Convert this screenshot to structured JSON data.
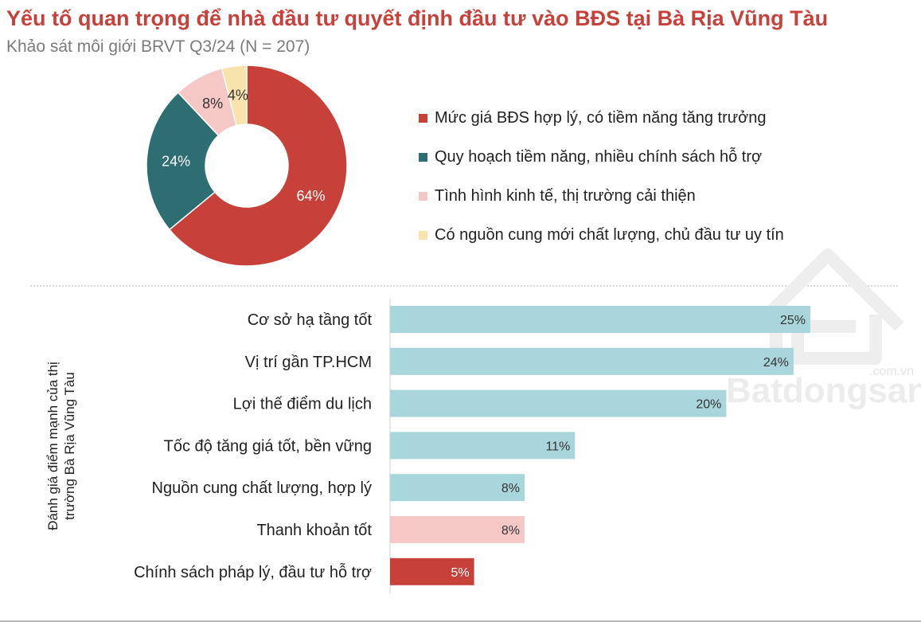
{
  "header": {
    "title": "Yếu tố quan trọng để nhà đầu tư quyết định đầu tư vào BĐS tại Bà Rịa Vũng Tàu",
    "subtitle": "Khảo sát môi giới BRVT Q3/24 (N = 207)"
  },
  "chart_data": [
    {
      "type": "pie",
      "variant": "donut",
      "title": "",
      "slices": [
        {
          "label": "Mức giá BĐS hợp lý, có tiềm năng tăng trưởng",
          "value": 64,
          "value_label": "64%",
          "color": "#c7413a"
        },
        {
          "label": "Quy hoạch tiềm năng, nhiều chính sách hỗ trợ",
          "value": 24,
          "value_label": "24%",
          "color": "#2d6e72"
        },
        {
          "label": "Tình hình kinh tế, thị trường cải thiện",
          "value": 8,
          "value_label": "8%",
          "color": "#f5c8c6"
        },
        {
          "label": "Có nguồn cung mới chất lượng, chủ đầu tư uy tín",
          "value": 4,
          "value_label": "4%",
          "color": "#f8e3ad"
        }
      ],
      "legend_position": "right"
    },
    {
      "type": "bar",
      "orientation": "horizontal",
      "title": "",
      "ylabel": "Đánh giá điểm mạnh của thị trường Bà Rịa Vũng Tàu",
      "xlim": [
        0,
        25
      ],
      "grid": false,
      "categories": [
        "Cơ sở hạ tầng tốt",
        "Vị trí gần TP.HCM",
        "Lợi thế điểm du lịch",
        "Tốc độ tăng giá tốt, bền vững",
        "Nguồn cung chất lượng, hợp lý",
        "Thanh khoản tốt",
        "Chính sách pháp lý, đầu tư hỗ trợ"
      ],
      "values": [
        25,
        24,
        20,
        11,
        8,
        8,
        5
      ],
      "value_labels": [
        "25%",
        "24%",
        "20%",
        "11%",
        "8%",
        "8%",
        "5%"
      ],
      "colors": [
        "#a9d5dc",
        "#a9d5dc",
        "#a9d5dc",
        "#a9d5dc",
        "#a9d5dc",
        "#f5c8c6",
        "#c7413a"
      ]
    }
  ],
  "watermark": {
    "brand": "Batdongsan",
    "suffix": ".com.vn"
  }
}
